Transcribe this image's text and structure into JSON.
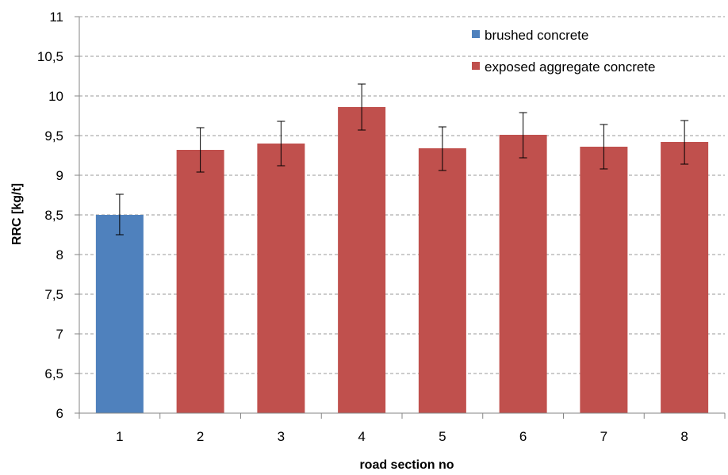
{
  "chart_data": {
    "type": "bar",
    "title": "",
    "xlabel": "road section no",
    "ylabel": "RRC [kg/t]",
    "categories": [
      "1",
      "2",
      "3",
      "4",
      "5",
      "6",
      "7",
      "8"
    ],
    "values": [
      8.5,
      9.32,
      9.4,
      9.86,
      9.34,
      9.51,
      9.36,
      9.42
    ],
    "error_low": [
      8.25,
      9.04,
      9.12,
      9.57,
      9.06,
      9.22,
      9.08,
      9.14
    ],
    "error_high": [
      8.76,
      9.6,
      9.68,
      10.15,
      9.61,
      9.79,
      9.64,
      9.69
    ],
    "series_index": [
      0,
      1,
      1,
      1,
      1,
      1,
      1,
      1
    ],
    "legend": [
      {
        "label": "brushed concrete",
        "color": "#4F81BD"
      },
      {
        "label": "exposed aggregate concrete",
        "color": "#C0504D"
      }
    ],
    "ylim": [
      6,
      11
    ],
    "yticks": [
      6,
      6.5,
      7,
      7.5,
      8,
      8.5,
      9,
      9.5,
      10,
      10.5,
      11
    ],
    "ytick_labels": [
      "6",
      "6,5",
      "7",
      "7,5",
      "8",
      "8,5",
      "9",
      "9,5",
      "10",
      "10,5",
      "11"
    ],
    "grid": true,
    "legend_position": "top-right"
  }
}
